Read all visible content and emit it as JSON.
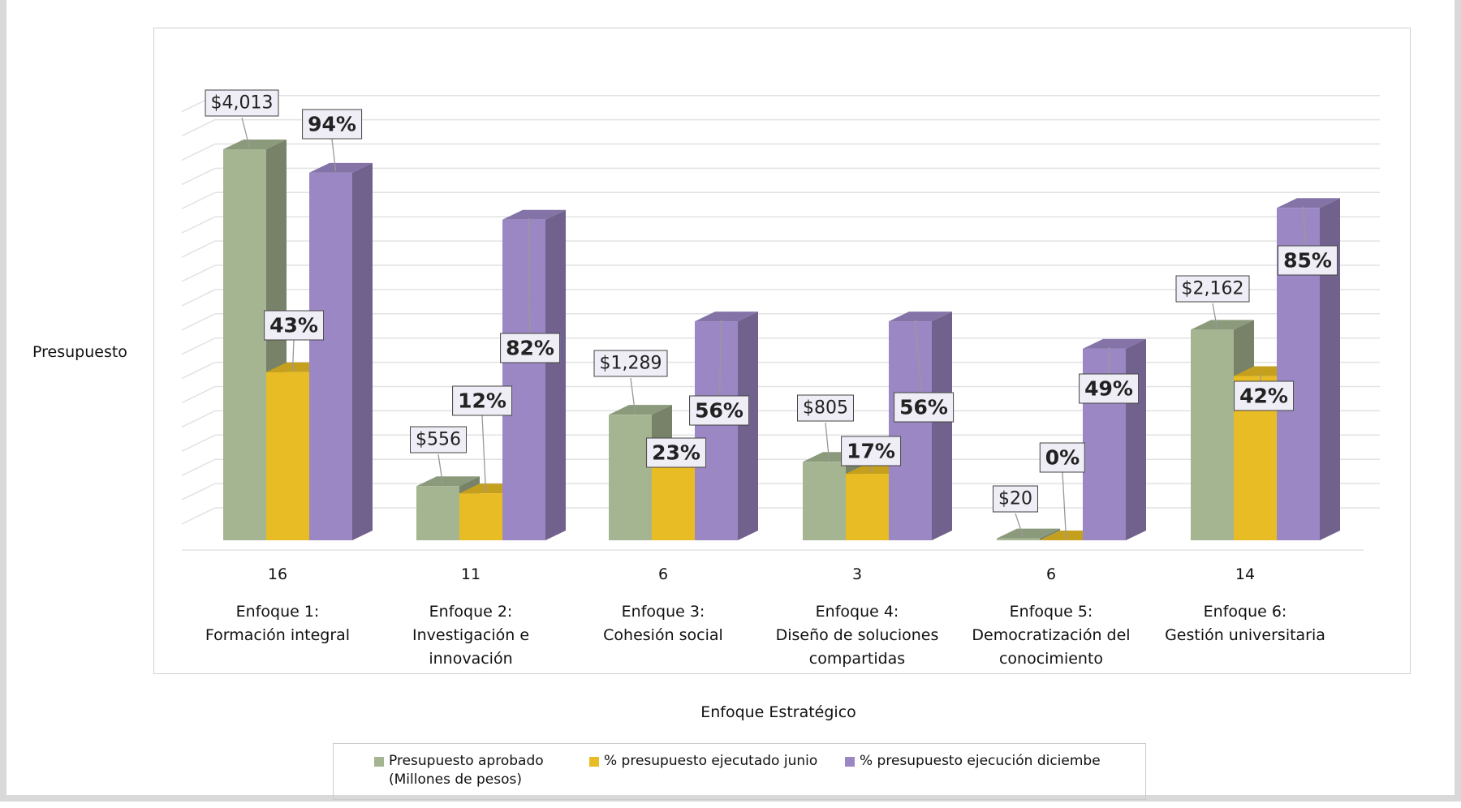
{
  "chart_data": {
    "type": "bar3d",
    "y_label": "Presupuesto",
    "x_label": "Enfoque Estratégico",
    "counts": [
      16,
      11,
      6,
      3,
      6,
      14
    ],
    "categories": [
      "Enfoque 1:\nFormación integral",
      "Enfoque 2:\nInvestigación e\ninnovación",
      "Enfoque 3:\nCohesión social",
      "Enfoque 4:\nDiseño de soluciones\ncompartidas",
      "Enfoque 5:\nDemocratización del\nconocimiento",
      "Enfoque 6:\nGestión universitaria"
    ],
    "series": [
      {
        "name": "Presupuesto aprobado (Millones de pesos)",
        "color": "#a5b592",
        "values": [
          4013,
          556,
          1289,
          805,
          20,
          2162
        ],
        "value_labels": [
          "$4,013",
          "$556",
          "$1,289",
          "$805",
          "$20",
          "$2,162"
        ]
      },
      {
        "name": "% presupuesto ejecutado junio",
        "color": "#e8bc25",
        "values": [
          43,
          12,
          23,
          17,
          0,
          42
        ],
        "value_labels": [
          "43%",
          "12%",
          "23%",
          "17%",
          "0%",
          "42%"
        ]
      },
      {
        "name": "% presupuesto ejecución diciembe",
        "color": "#9b87c4",
        "values": [
          94,
          82,
          56,
          56,
          49,
          85
        ],
        "value_labels": [
          "94%",
          "82%",
          "56%",
          "56%",
          "49%",
          "85%"
        ]
      }
    ]
  }
}
